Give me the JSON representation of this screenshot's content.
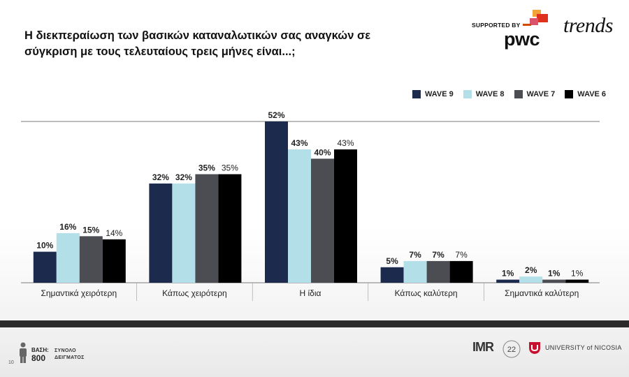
{
  "title": "Η διεκπεραίωση των βασικών καταναλωτικών σας αναγκών σε σύγκριση με τους τελευταίους τρεις μήνες είναι...;",
  "supported_by": "SUPPORTED BY",
  "pwc": "pwc",
  "trends": "trends",
  "footer": {
    "base_label": "ΒΑΣΗ:",
    "base_value": "800",
    "sample_label": "ΣΥΝΟΛΟ ΔΕΙΓΜΑΤΟΣ",
    "page_number": "10",
    "imr": "IMR",
    "imr_years": "22",
    "university": "UNIVERSITY of NICOSIA"
  },
  "chart_data": {
    "type": "bar",
    "categories": [
      "Σημαντικά χειρότερη",
      "Κάπως χειρότερη",
      "Η ίδια",
      "Κάπως καλύτερη",
      "Σημαντικά καλύτερη"
    ],
    "series": [
      {
        "name": "WAVE 9",
        "color": "#1c2a4e",
        "values": [
          10,
          32,
          52,
          5,
          1
        ]
      },
      {
        "name": "WAVE 8",
        "color": "#b3e0e8",
        "values": [
          16,
          32,
          43,
          7,
          2
        ]
      },
      {
        "name": "WAVE 7",
        "color": "#4b4d52",
        "values": [
          15,
          35,
          40,
          7,
          1
        ]
      },
      {
        "name": "WAVE 6",
        "color": "#000000",
        "values": [
          14,
          35,
          43,
          7,
          1
        ]
      }
    ],
    "value_suffix": "%",
    "ylim": [
      0,
      52
    ],
    "grid": true,
    "legend": "top-right"
  }
}
